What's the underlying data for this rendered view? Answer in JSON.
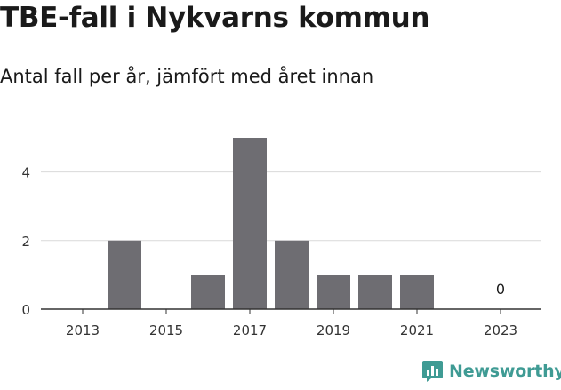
{
  "title": "TBE-fall i Nykvarns kommun",
  "subtitle": "Antal fall per år, jämfört med året innan",
  "brand": {
    "name": "Newsworthy",
    "color": "#3f9b94",
    "icon": "newsworthy-logo-icon"
  },
  "chart_data": {
    "type": "bar",
    "categories": [
      2013,
      2014,
      2015,
      2016,
      2017,
      2018,
      2019,
      2020,
      2021,
      2022,
      2023
    ],
    "values": [
      0,
      2,
      0,
      1,
      5,
      2,
      1,
      1,
      1,
      0,
      0
    ],
    "x_tick_labels": [
      "2013",
      "2015",
      "2017",
      "2019",
      "2021",
      "2023"
    ],
    "y_ticks": [
      0,
      2,
      4
    ],
    "ylim": [
      0,
      5
    ],
    "data_labels": [
      {
        "category": 2023,
        "text": "0"
      }
    ],
    "bar_color": "#6e6d72",
    "grid": true,
    "xlabel": "",
    "ylabel": ""
  }
}
